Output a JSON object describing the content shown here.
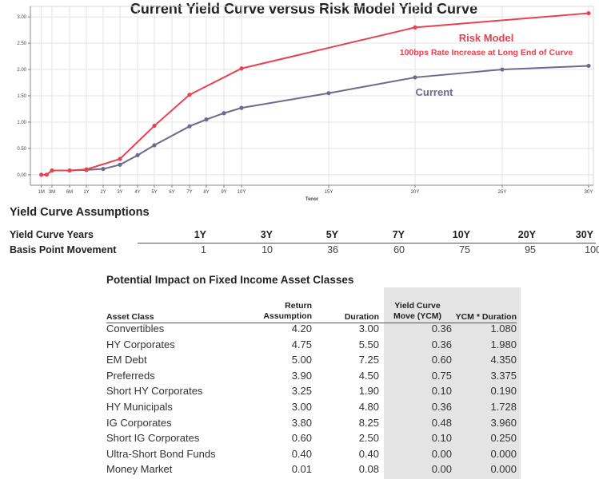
{
  "chart_data": {
    "type": "line",
    "title": "Current Yield Curve versus Risk Model Yield Curve",
    "xlabel": "Tenor",
    "ylabel": "",
    "x_ticks": [
      "1M",
      "3M",
      "6M",
      "1Y",
      "2Y",
      "3Y",
      "4Y",
      "5Y",
      "6Y",
      "7Y",
      "8Y",
      "9Y",
      "10Y",
      "15Y",
      "20Y",
      "25Y",
      "30Y"
    ],
    "y_ticks": [
      "0.00",
      "0.50",
      "1.00",
      "1.50",
      "2.00",
      "2.50",
      "3.00"
    ],
    "ylim": [
      -0.2,
      3.2
    ],
    "grid": true,
    "series": [
      {
        "name": "Risk Model",
        "color": "#e8414f",
        "points": [
          {
            "x": "1M",
            "y": 0.0
          },
          {
            "x": "2M",
            "y": 0.0
          },
          {
            "x": "3M",
            "y": 0.08
          },
          {
            "x": "6M",
            "y": 0.08
          },
          {
            "x": "1Y",
            "y": 0.1
          },
          {
            "x": "3Y",
            "y": 0.3
          },
          {
            "x": "5Y",
            "y": 0.93
          },
          {
            "x": "7Y",
            "y": 1.52
          },
          {
            "x": "10Y",
            "y": 2.02
          },
          {
            "x": "20Y",
            "y": 2.8
          },
          {
            "x": "30Y",
            "y": 3.07
          }
        ]
      },
      {
        "name": "Current",
        "color": "#6e6a8c",
        "points": [
          {
            "x": "3M",
            "y": 0.08
          },
          {
            "x": "6M",
            "y": 0.08
          },
          {
            "x": "1Y",
            "y": 0.09
          },
          {
            "x": "2Y",
            "y": 0.11
          },
          {
            "x": "3Y",
            "y": 0.19
          },
          {
            "x": "4Y",
            "y": 0.37
          },
          {
            "x": "5Y",
            "y": 0.56
          },
          {
            "x": "7Y",
            "y": 0.92
          },
          {
            "x": "8Y",
            "y": 1.05
          },
          {
            "x": "9Y",
            "y": 1.17
          },
          {
            "x": "10Y",
            "y": 1.27
          },
          {
            "x": "15Y",
            "y": 1.55
          },
          {
            "x": "20Y",
            "y": 1.85
          },
          {
            "x": "25Y",
            "y": 2.0
          },
          {
            "x": "30Y",
            "y": 2.07
          }
        ]
      }
    ],
    "annotations": [
      {
        "text": "Risk Model",
        "color": "#e8414f"
      },
      {
        "text": "100bps Rate Increase at Long End of Curve",
        "color": "#e8414f"
      },
      {
        "text": "Current",
        "color": "#6e6a8c"
      }
    ]
  },
  "assumptions": {
    "title": "Yield Curve Assumptions",
    "years_label": "Yield Curve Years",
    "years": [
      "1Y",
      "3Y",
      "5Y",
      "7Y",
      "10Y",
      "20Y",
      "30Y"
    ],
    "movement_label": "Basis Point Movement",
    "movement": [
      "1",
      "10",
      "36",
      "60",
      "75",
      "95",
      "100"
    ]
  },
  "impact": {
    "title": "Potential Impact on Fixed Income Asset Classes",
    "headers": {
      "asset": "Asset Class",
      "return": "Return\nAssumption",
      "duration": "Duration",
      "ycm": "Yield Curve\nMove (YCM)",
      "product": "YCM * Duration"
    },
    "rows": [
      {
        "asset": "Convertibles",
        "ret": "4.20",
        "dur": "3.00",
        "ycm": "0.36",
        "prod": "1.080"
      },
      {
        "asset": "HY Corporates",
        "ret": "4.75",
        "dur": "5.50",
        "ycm": "0.36",
        "prod": "1.980"
      },
      {
        "asset": "EM Debt",
        "ret": "5.00",
        "dur": "7.25",
        "ycm": "0.60",
        "prod": "4.350"
      },
      {
        "asset": "Preferreds",
        "ret": "3.90",
        "dur": "4.50",
        "ycm": "0.75",
        "prod": "3.375"
      },
      {
        "asset": "Short HY Corporates",
        "ret": "3.25",
        "dur": "1.90",
        "ycm": "0.10",
        "prod": "0.190"
      },
      {
        "asset": "HY Municipals",
        "ret": "3.00",
        "dur": "4.80",
        "ycm": "0.36",
        "prod": "1.728"
      },
      {
        "asset": "IG Corporates",
        "ret": "3.80",
        "dur": "8.25",
        "ycm": "0.48",
        "prod": "3.960"
      },
      {
        "asset": "Short IG Corporates",
        "ret": "0.60",
        "dur": "2.50",
        "ycm": "0.10",
        "prod": "0.250"
      },
      {
        "asset": "Ultra-Short Bond Funds",
        "ret": "0.40",
        "dur": "0.40",
        "ycm": "0.00",
        "prod": "0.000"
      },
      {
        "asset": "Money Market",
        "ret": "0.01",
        "dur": "0.08",
        "ycm": "0.00",
        "prod": "0.000"
      }
    ]
  }
}
